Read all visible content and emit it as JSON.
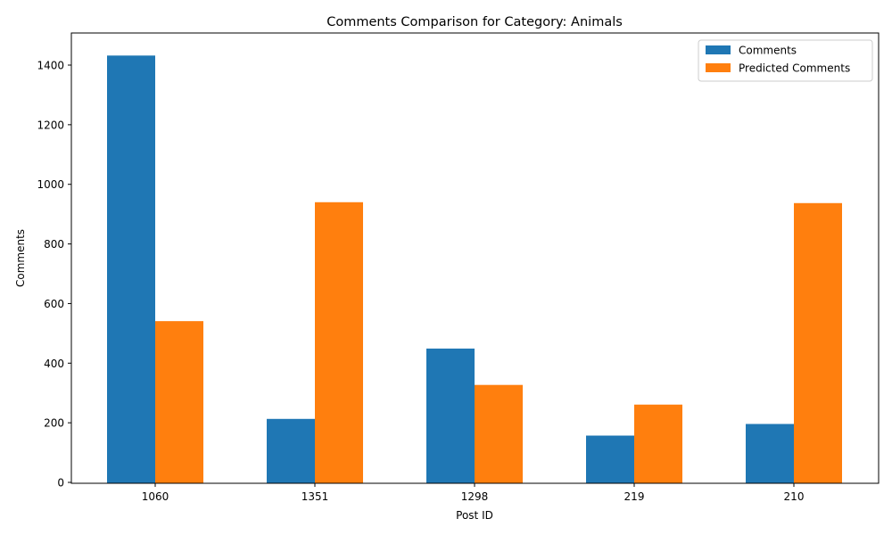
{
  "chart_data": {
    "type": "bar",
    "title": "Comments Comparison for Category: Animals",
    "xlabel": "Post ID",
    "ylabel": "Comments",
    "categories": [
      "1060",
      "1351",
      "1298",
      "219",
      "210"
    ],
    "series": [
      {
        "name": "Comments",
        "values": [
          1432,
          213,
          449,
          157,
          196
        ],
        "color": "#1f77b4"
      },
      {
        "name": "Predicted Comments",
        "values": [
          541,
          940,
          327,
          261,
          937
        ],
        "color": "#ff7f0e"
      }
    ],
    "ylim": [
      0,
      1500
    ],
    "yticks": [
      0,
      200,
      400,
      600,
      800,
      1000,
      1200,
      1400
    ],
    "grid": false,
    "legend": "top-right"
  }
}
